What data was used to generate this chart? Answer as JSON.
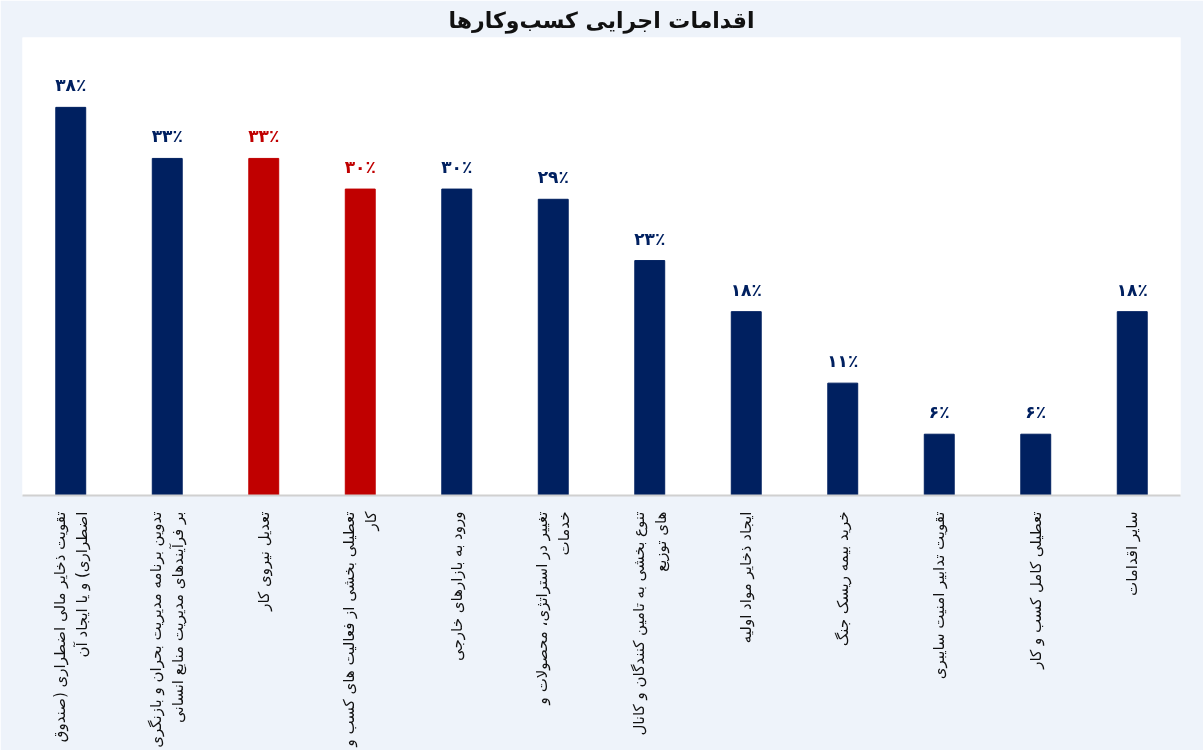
{
  "chart_data": {
    "type": "bar",
    "title": "اقدامات اجرایی کسب‌وکارها",
    "categories": [
      "تقویت ذخایر مالی اضطراری (صندوق\nاضطراری) و یا ایجاد آن",
      "تدوین برنامه مدیریت بحران و بازنگری\nبر فرآیندهای مدیریت منابع انسانی",
      "تعدیل نیروی کار",
      "تعطیلی بخشی از فعالیت های کسب و\nکار",
      "ورود به بازارهای خارجی",
      "تغییر در استراتژی، محصولات و\nخدمات",
      "تنوع بخشی به تامین کنندگان و کانال\nهای توزیع",
      "ایجاد ذخایر مواد اولیه",
      "خرید بیمه ریسک جنگ",
      "تقویت تدابیر امنیت سایبری",
      "تعطیلی کامل کسب و کار",
      "سایر اقدامات"
    ],
    "values": [
      38,
      33,
      33,
      30,
      30,
      29,
      23,
      18,
      11,
      6,
      6,
      18
    ],
    "colors": [
      "#002060",
      "#002060",
      "#c00000",
      "#c00000",
      "#002060",
      "#002060",
      "#002060",
      "#002060",
      "#002060",
      "#002060",
      "#002060",
      "#002060"
    ],
    "value_labels": [
      "۳۸٪",
      "۳۳٪",
      "۳۳٪",
      "۳۰٪",
      "۳۰٪",
      "۲۹٪",
      "۲۳٪",
      "۱۸٪",
      "۱۱٪",
      "۶٪",
      "۶٪",
      "۱۸٪"
    ]
  }
}
